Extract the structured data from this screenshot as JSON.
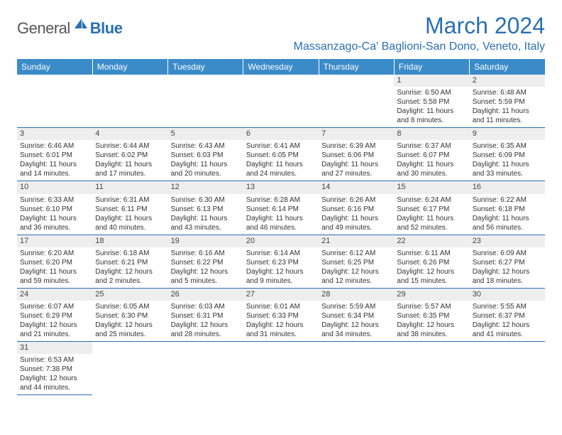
{
  "logo": {
    "part1": "General",
    "part2": "Blue"
  },
  "title": "March 2024",
  "location": "Massanzago-Ca' Baglioni-San Dono, Veneto, Italy",
  "colors": {
    "brand": "#2a6fb5",
    "header_bg": "#3b8bc9",
    "header_text": "#ffffff",
    "daynum_bg": "#eeeeee",
    "text": "#333333",
    "rule": "#2a6fb5"
  },
  "weekdays": [
    "Sunday",
    "Monday",
    "Tuesday",
    "Wednesday",
    "Thursday",
    "Friday",
    "Saturday"
  ],
  "weeks": [
    [
      {
        "n": "",
        "sr": "",
        "ss": "",
        "dl": ""
      },
      {
        "n": "",
        "sr": "",
        "ss": "",
        "dl": ""
      },
      {
        "n": "",
        "sr": "",
        "ss": "",
        "dl": ""
      },
      {
        "n": "",
        "sr": "",
        "ss": "",
        "dl": ""
      },
      {
        "n": "",
        "sr": "",
        "ss": "",
        "dl": ""
      },
      {
        "n": "1",
        "sr": "Sunrise: 6:50 AM",
        "ss": "Sunset: 5:58 PM",
        "dl": "Daylight: 11 hours and 8 minutes."
      },
      {
        "n": "2",
        "sr": "Sunrise: 6:48 AM",
        "ss": "Sunset: 5:59 PM",
        "dl": "Daylight: 11 hours and 11 minutes."
      }
    ],
    [
      {
        "n": "3",
        "sr": "Sunrise: 6:46 AM",
        "ss": "Sunset: 6:01 PM",
        "dl": "Daylight: 11 hours and 14 minutes."
      },
      {
        "n": "4",
        "sr": "Sunrise: 6:44 AM",
        "ss": "Sunset: 6:02 PM",
        "dl": "Daylight: 11 hours and 17 minutes."
      },
      {
        "n": "5",
        "sr": "Sunrise: 6:43 AM",
        "ss": "Sunset: 6:03 PM",
        "dl": "Daylight: 11 hours and 20 minutes."
      },
      {
        "n": "6",
        "sr": "Sunrise: 6:41 AM",
        "ss": "Sunset: 6:05 PM",
        "dl": "Daylight: 11 hours and 24 minutes."
      },
      {
        "n": "7",
        "sr": "Sunrise: 6:39 AM",
        "ss": "Sunset: 6:06 PM",
        "dl": "Daylight: 11 hours and 27 minutes."
      },
      {
        "n": "8",
        "sr": "Sunrise: 6:37 AM",
        "ss": "Sunset: 6:07 PM",
        "dl": "Daylight: 11 hours and 30 minutes."
      },
      {
        "n": "9",
        "sr": "Sunrise: 6:35 AM",
        "ss": "Sunset: 6:09 PM",
        "dl": "Daylight: 11 hours and 33 minutes."
      }
    ],
    [
      {
        "n": "10",
        "sr": "Sunrise: 6:33 AM",
        "ss": "Sunset: 6:10 PM",
        "dl": "Daylight: 11 hours and 36 minutes."
      },
      {
        "n": "11",
        "sr": "Sunrise: 6:31 AM",
        "ss": "Sunset: 6:11 PM",
        "dl": "Daylight: 11 hours and 40 minutes."
      },
      {
        "n": "12",
        "sr": "Sunrise: 6:30 AM",
        "ss": "Sunset: 6:13 PM",
        "dl": "Daylight: 11 hours and 43 minutes."
      },
      {
        "n": "13",
        "sr": "Sunrise: 6:28 AM",
        "ss": "Sunset: 6:14 PM",
        "dl": "Daylight: 11 hours and 46 minutes."
      },
      {
        "n": "14",
        "sr": "Sunrise: 6:26 AM",
        "ss": "Sunset: 6:16 PM",
        "dl": "Daylight: 11 hours and 49 minutes."
      },
      {
        "n": "15",
        "sr": "Sunrise: 6:24 AM",
        "ss": "Sunset: 6:17 PM",
        "dl": "Daylight: 11 hours and 52 minutes."
      },
      {
        "n": "16",
        "sr": "Sunrise: 6:22 AM",
        "ss": "Sunset: 6:18 PM",
        "dl": "Daylight: 11 hours and 56 minutes."
      }
    ],
    [
      {
        "n": "17",
        "sr": "Sunrise: 6:20 AM",
        "ss": "Sunset: 6:20 PM",
        "dl": "Daylight: 11 hours and 59 minutes."
      },
      {
        "n": "18",
        "sr": "Sunrise: 6:18 AM",
        "ss": "Sunset: 6:21 PM",
        "dl": "Daylight: 12 hours and 2 minutes."
      },
      {
        "n": "19",
        "sr": "Sunrise: 6:16 AM",
        "ss": "Sunset: 6:22 PM",
        "dl": "Daylight: 12 hours and 5 minutes."
      },
      {
        "n": "20",
        "sr": "Sunrise: 6:14 AM",
        "ss": "Sunset: 6:23 PM",
        "dl": "Daylight: 12 hours and 9 minutes."
      },
      {
        "n": "21",
        "sr": "Sunrise: 6:12 AM",
        "ss": "Sunset: 6:25 PM",
        "dl": "Daylight: 12 hours and 12 minutes."
      },
      {
        "n": "22",
        "sr": "Sunrise: 6:11 AM",
        "ss": "Sunset: 6:26 PM",
        "dl": "Daylight: 12 hours and 15 minutes."
      },
      {
        "n": "23",
        "sr": "Sunrise: 6:09 AM",
        "ss": "Sunset: 6:27 PM",
        "dl": "Daylight: 12 hours and 18 minutes."
      }
    ],
    [
      {
        "n": "24",
        "sr": "Sunrise: 6:07 AM",
        "ss": "Sunset: 6:29 PM",
        "dl": "Daylight: 12 hours and 21 minutes."
      },
      {
        "n": "25",
        "sr": "Sunrise: 6:05 AM",
        "ss": "Sunset: 6:30 PM",
        "dl": "Daylight: 12 hours and 25 minutes."
      },
      {
        "n": "26",
        "sr": "Sunrise: 6:03 AM",
        "ss": "Sunset: 6:31 PM",
        "dl": "Daylight: 12 hours and 28 minutes."
      },
      {
        "n": "27",
        "sr": "Sunrise: 6:01 AM",
        "ss": "Sunset: 6:33 PM",
        "dl": "Daylight: 12 hours and 31 minutes."
      },
      {
        "n": "28",
        "sr": "Sunrise: 5:59 AM",
        "ss": "Sunset: 6:34 PM",
        "dl": "Daylight: 12 hours and 34 minutes."
      },
      {
        "n": "29",
        "sr": "Sunrise: 5:57 AM",
        "ss": "Sunset: 6:35 PM",
        "dl": "Daylight: 12 hours and 38 minutes."
      },
      {
        "n": "30",
        "sr": "Sunrise: 5:55 AM",
        "ss": "Sunset: 6:37 PM",
        "dl": "Daylight: 12 hours and 41 minutes."
      }
    ],
    [
      {
        "n": "31",
        "sr": "Sunrise: 6:53 AM",
        "ss": "Sunset: 7:38 PM",
        "dl": "Daylight: 12 hours and 44 minutes."
      },
      {
        "n": "",
        "sr": "",
        "ss": "",
        "dl": ""
      },
      {
        "n": "",
        "sr": "",
        "ss": "",
        "dl": ""
      },
      {
        "n": "",
        "sr": "",
        "ss": "",
        "dl": ""
      },
      {
        "n": "",
        "sr": "",
        "ss": "",
        "dl": ""
      },
      {
        "n": "",
        "sr": "",
        "ss": "",
        "dl": ""
      },
      {
        "n": "",
        "sr": "",
        "ss": "",
        "dl": ""
      }
    ]
  ]
}
